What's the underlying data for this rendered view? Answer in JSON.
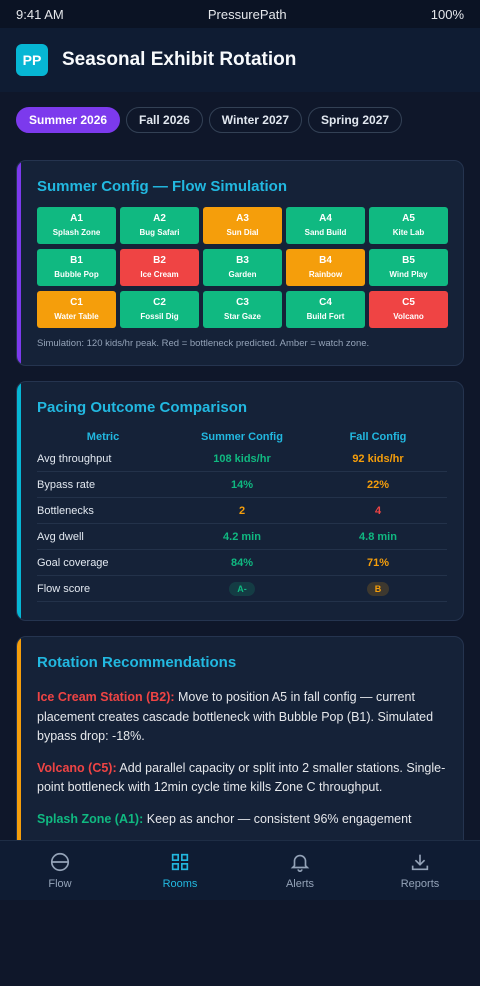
{
  "status": {
    "time": "9:41 AM",
    "app": "PressurePath",
    "battery": "100%"
  },
  "header": {
    "logo": "PP",
    "title": "Seasonal Exhibit Rotation"
  },
  "tabs": [
    {
      "label": "Summer 2026",
      "active": true
    },
    {
      "label": "Fall 2026",
      "active": false
    },
    {
      "label": "Winter 2027",
      "active": false
    },
    {
      "label": "Spring 2027",
      "active": false
    }
  ],
  "colors": {
    "green": "#10b981",
    "amber": "#f59e0b",
    "red": "#ef4444",
    "accent_purple": "#7c3aed",
    "accent_cyan": "#06b6d4",
    "accent_amber": "#f59e0b"
  },
  "simulation": {
    "title": "Summer Config — Flow Simulation",
    "cells": [
      {
        "id": "A1",
        "name": "Splash Zone",
        "status": "green"
      },
      {
        "id": "A2",
        "name": "Bug Safari",
        "status": "green"
      },
      {
        "id": "A3",
        "name": "Sun Dial",
        "status": "amber"
      },
      {
        "id": "A4",
        "name": "Sand Build",
        "status": "green"
      },
      {
        "id": "A5",
        "name": "Kite Lab",
        "status": "green"
      },
      {
        "id": "B1",
        "name": "Bubble Pop",
        "status": "green"
      },
      {
        "id": "B2",
        "name": "Ice Cream",
        "status": "red"
      },
      {
        "id": "B3",
        "name": "Garden",
        "status": "green"
      },
      {
        "id": "B4",
        "name": "Rainbow",
        "status": "amber"
      },
      {
        "id": "B5",
        "name": "Wind Play",
        "status": "green"
      },
      {
        "id": "C1",
        "name": "Water Table",
        "status": "amber"
      },
      {
        "id": "C2",
        "name": "Fossil Dig",
        "status": "green"
      },
      {
        "id": "C3",
        "name": "Star Gaze",
        "status": "green"
      },
      {
        "id": "C4",
        "name": "Build Fort",
        "status": "green"
      },
      {
        "id": "C5",
        "name": "Volcano",
        "status": "red"
      }
    ],
    "note": "Simulation: 120 kids/hr peak. Red = bottleneck predicted. Amber = watch zone."
  },
  "comparison": {
    "title": "Pacing Outcome Comparison",
    "headers": [
      "Metric",
      "Summer Config",
      "Fall Config"
    ],
    "rows": [
      {
        "metric": "Avg throughput",
        "summer": "108 kids/hr",
        "summer_color": "green",
        "fall": "92 kids/hr",
        "fall_color": "amber"
      },
      {
        "metric": "Bypass rate",
        "summer": "14%",
        "summer_color": "green",
        "fall": "22%",
        "fall_color": "amber"
      },
      {
        "metric": "Bottlenecks",
        "summer": "2",
        "summer_color": "amber",
        "fall": "4",
        "fall_color": "red"
      },
      {
        "metric": "Avg dwell",
        "summer": "4.2 min",
        "summer_color": "green",
        "fall": "4.8 min",
        "fall_color": "green"
      },
      {
        "metric": "Goal coverage",
        "summer": "84%",
        "summer_color": "green",
        "fall": "71%",
        "fall_color": "amber"
      },
      {
        "metric": "Flow score",
        "summer": "A-",
        "summer_color": "green",
        "fall": "B",
        "fall_color": "amber",
        "pill": true
      }
    ]
  },
  "recommendations": {
    "title": "Rotation Recommendations",
    "items": [
      {
        "lead": "Ice Cream Station (B2):",
        "lead_color": "red",
        "text": " Move to position A5 in fall config — current placement creates cascade bottleneck with Bubble Pop (B1). Simulated bypass drop: -18%."
      },
      {
        "lead": "Volcano (C5):",
        "lead_color": "red",
        "text": " Add parallel capacity or split into 2 smaller stations. Single-point bottleneck with 12min cycle time kills Zone C throughput."
      },
      {
        "lead": "Splash Zone (A1):",
        "lead_color": "green",
        "text": " Keep as anchor — consistent 96% engagement"
      }
    ]
  },
  "nav": [
    {
      "label": "Flow",
      "icon": "flow-icon",
      "active": false
    },
    {
      "label": "Rooms",
      "icon": "grid-icon",
      "active": true
    },
    {
      "label": "Alerts",
      "icon": "bell-icon",
      "active": false
    },
    {
      "label": "Reports",
      "icon": "download-icon",
      "active": false
    }
  ]
}
